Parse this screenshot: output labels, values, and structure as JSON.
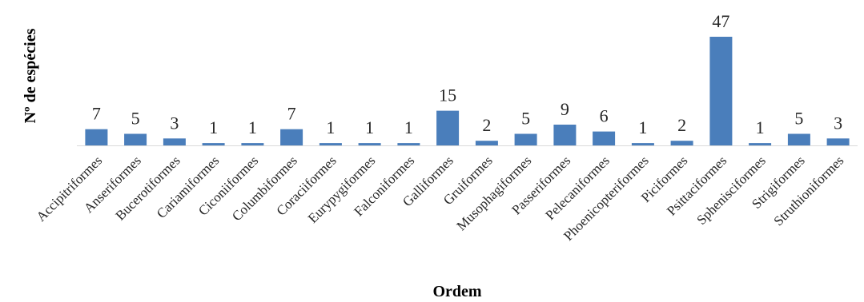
{
  "chart_data": {
    "type": "bar",
    "title": "",
    "xlabel": "Ordem",
    "ylabel": "Nº de espécies",
    "categories": [
      "Accipitriformes",
      "Anseriformes",
      "Bucerotiformes",
      "Cariamiformes",
      "Ciconiiformes",
      "Columbiformes",
      "Coraciiformes",
      "Eurypygiformes",
      "Falconiformes",
      "Galliformes",
      "Gruiformes",
      "Musophagiformes",
      "Passeriformes",
      "Pelecaniformes",
      "Phoenicopteriformes",
      "Piciformes",
      "Psittaciformes",
      "Sphenisciformes",
      "Strigiformes",
      "Struthioniformes"
    ],
    "values": [
      7,
      5,
      3,
      1,
      1,
      7,
      1,
      1,
      1,
      15,
      2,
      5,
      9,
      6,
      1,
      2,
      47,
      1,
      5,
      3
    ],
    "ylim": [
      0,
      47
    ],
    "grid": false,
    "legend": "none",
    "bar_color": "#4a7ebb",
    "axis_color": "#d9d9d9"
  }
}
